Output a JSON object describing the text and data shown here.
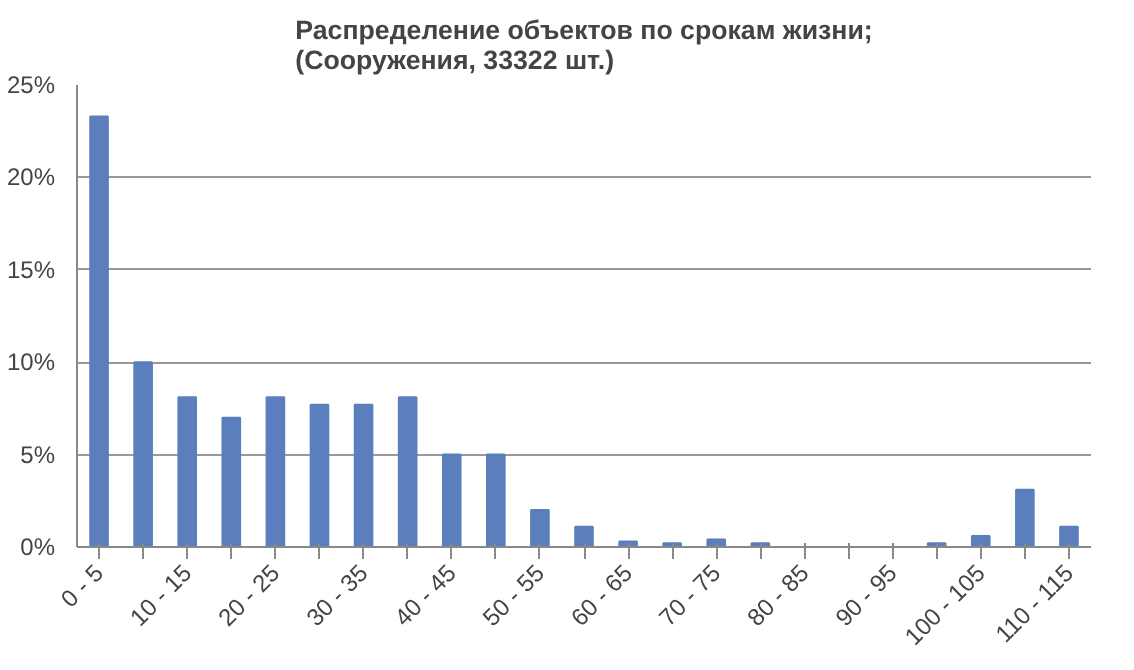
{
  "chart_data": {
    "type": "bar",
    "title": "Распределение объектов по срокам жизни;\n(Сооружения, 33322 шт.)",
    "categories": [
      "0 - 5",
      null,
      "10 - 15",
      null,
      "20 - 25",
      null,
      "30 - 35",
      null,
      "40 - 45",
      null,
      "50 - 55",
      null,
      "60 - 65",
      null,
      "70 - 75",
      null,
      "80 - 85",
      null,
      "90 - 95",
      null,
      "100 - 105",
      null,
      "110 - 115"
    ],
    "values": [
      23.3,
      10.0,
      8.1,
      7.0,
      8.1,
      7.7,
      7.7,
      8.1,
      5.0,
      5.0,
      2.0,
      1.1,
      0.3,
      0.2,
      0.4,
      0.2,
      0,
      0,
      0,
      0.2,
      0.6,
      3.1,
      1.1
    ],
    "color": "#5b7fbd",
    "ylim": [
      0,
      25
    ],
    "yticks": [
      {
        "value": 0,
        "label": "0%"
      },
      {
        "value": 5,
        "label": "5%"
      },
      {
        "value": 10,
        "label": "10%"
      },
      {
        "value": 15,
        "label": "15%"
      },
      {
        "value": 20,
        "label": "20%"
      },
      {
        "value": 25,
        "label": "25%"
      }
    ],
    "grid": "y"
  }
}
